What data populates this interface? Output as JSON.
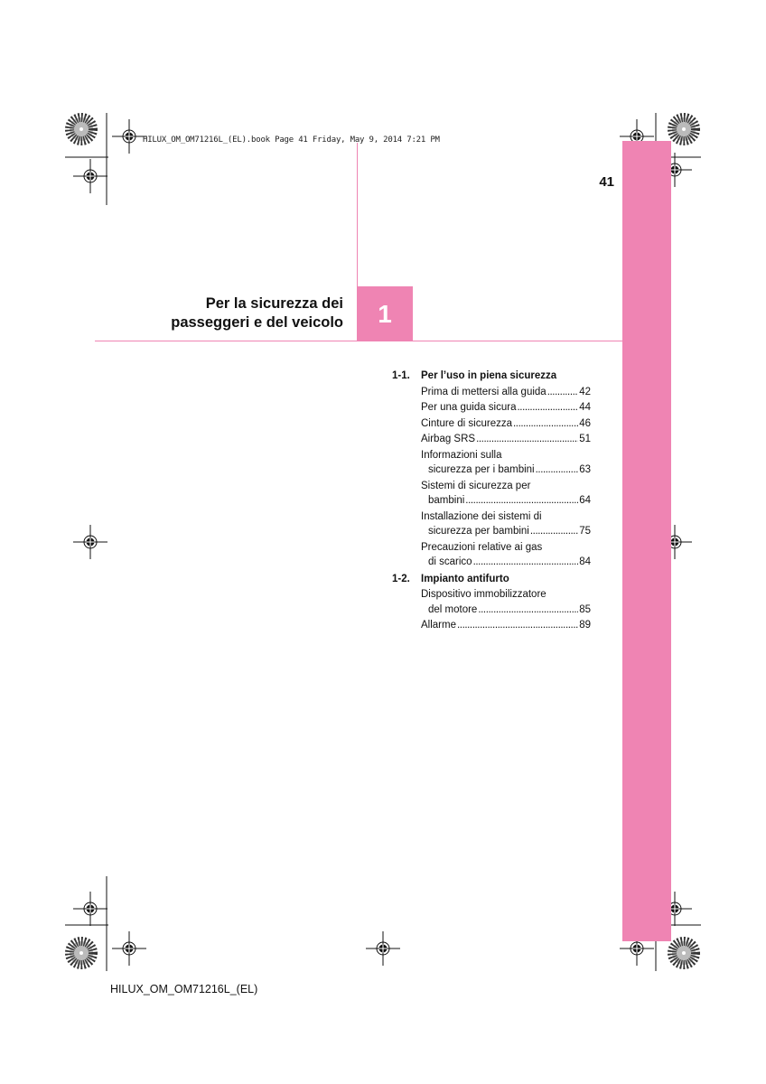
{
  "header": {
    "print_line": "HILUX_OM_OM71216L_(EL).book  Page 41  Friday, May 9, 2014  7:21 PM"
  },
  "page_number": "41",
  "chapter": {
    "number": "1",
    "title_line1": "Per la sicurezza dei",
    "title_line2": "passeggeri e del veicolo"
  },
  "toc": {
    "sections": [
      {
        "number": "1-1.",
        "title": "Per l’uso in piena sicurezza",
        "entries": [
          {
            "lines": [],
            "last": "Prima di mettersi alla guida",
            "page": "42"
          },
          {
            "lines": [],
            "last": "Per una guida sicura",
            "page": "44"
          },
          {
            "lines": [],
            "last": "Cinture di sicurezza",
            "page": "46"
          },
          {
            "lines": [],
            "last": "Airbag SRS",
            "page": "51"
          },
          {
            "lines": [
              "Informazioni sulla"
            ],
            "last": "sicurezza per i bambini",
            "page": "63"
          },
          {
            "lines": [
              "Sistemi di sicurezza per"
            ],
            "last": "bambini",
            "page": "64"
          },
          {
            "lines": [
              "Installazione dei sistemi di"
            ],
            "last": "sicurezza per bambini",
            "page": "75"
          },
          {
            "lines": [
              "Precauzioni relative ai gas"
            ],
            "last": "di scarico",
            "page": "84"
          }
        ]
      },
      {
        "number": "1-2.",
        "title": "Impianto antifurto",
        "entries": [
          {
            "lines": [
              "Dispositivo immobilizzatore"
            ],
            "last": "del motore",
            "page": "85"
          },
          {
            "lines": [],
            "last": "Allarme",
            "page": "89"
          }
        ]
      }
    ]
  },
  "footer": {
    "code": "HILUX_OM_OM71216L_(EL)"
  },
  "colors": {
    "accent": "#ef84b3"
  }
}
